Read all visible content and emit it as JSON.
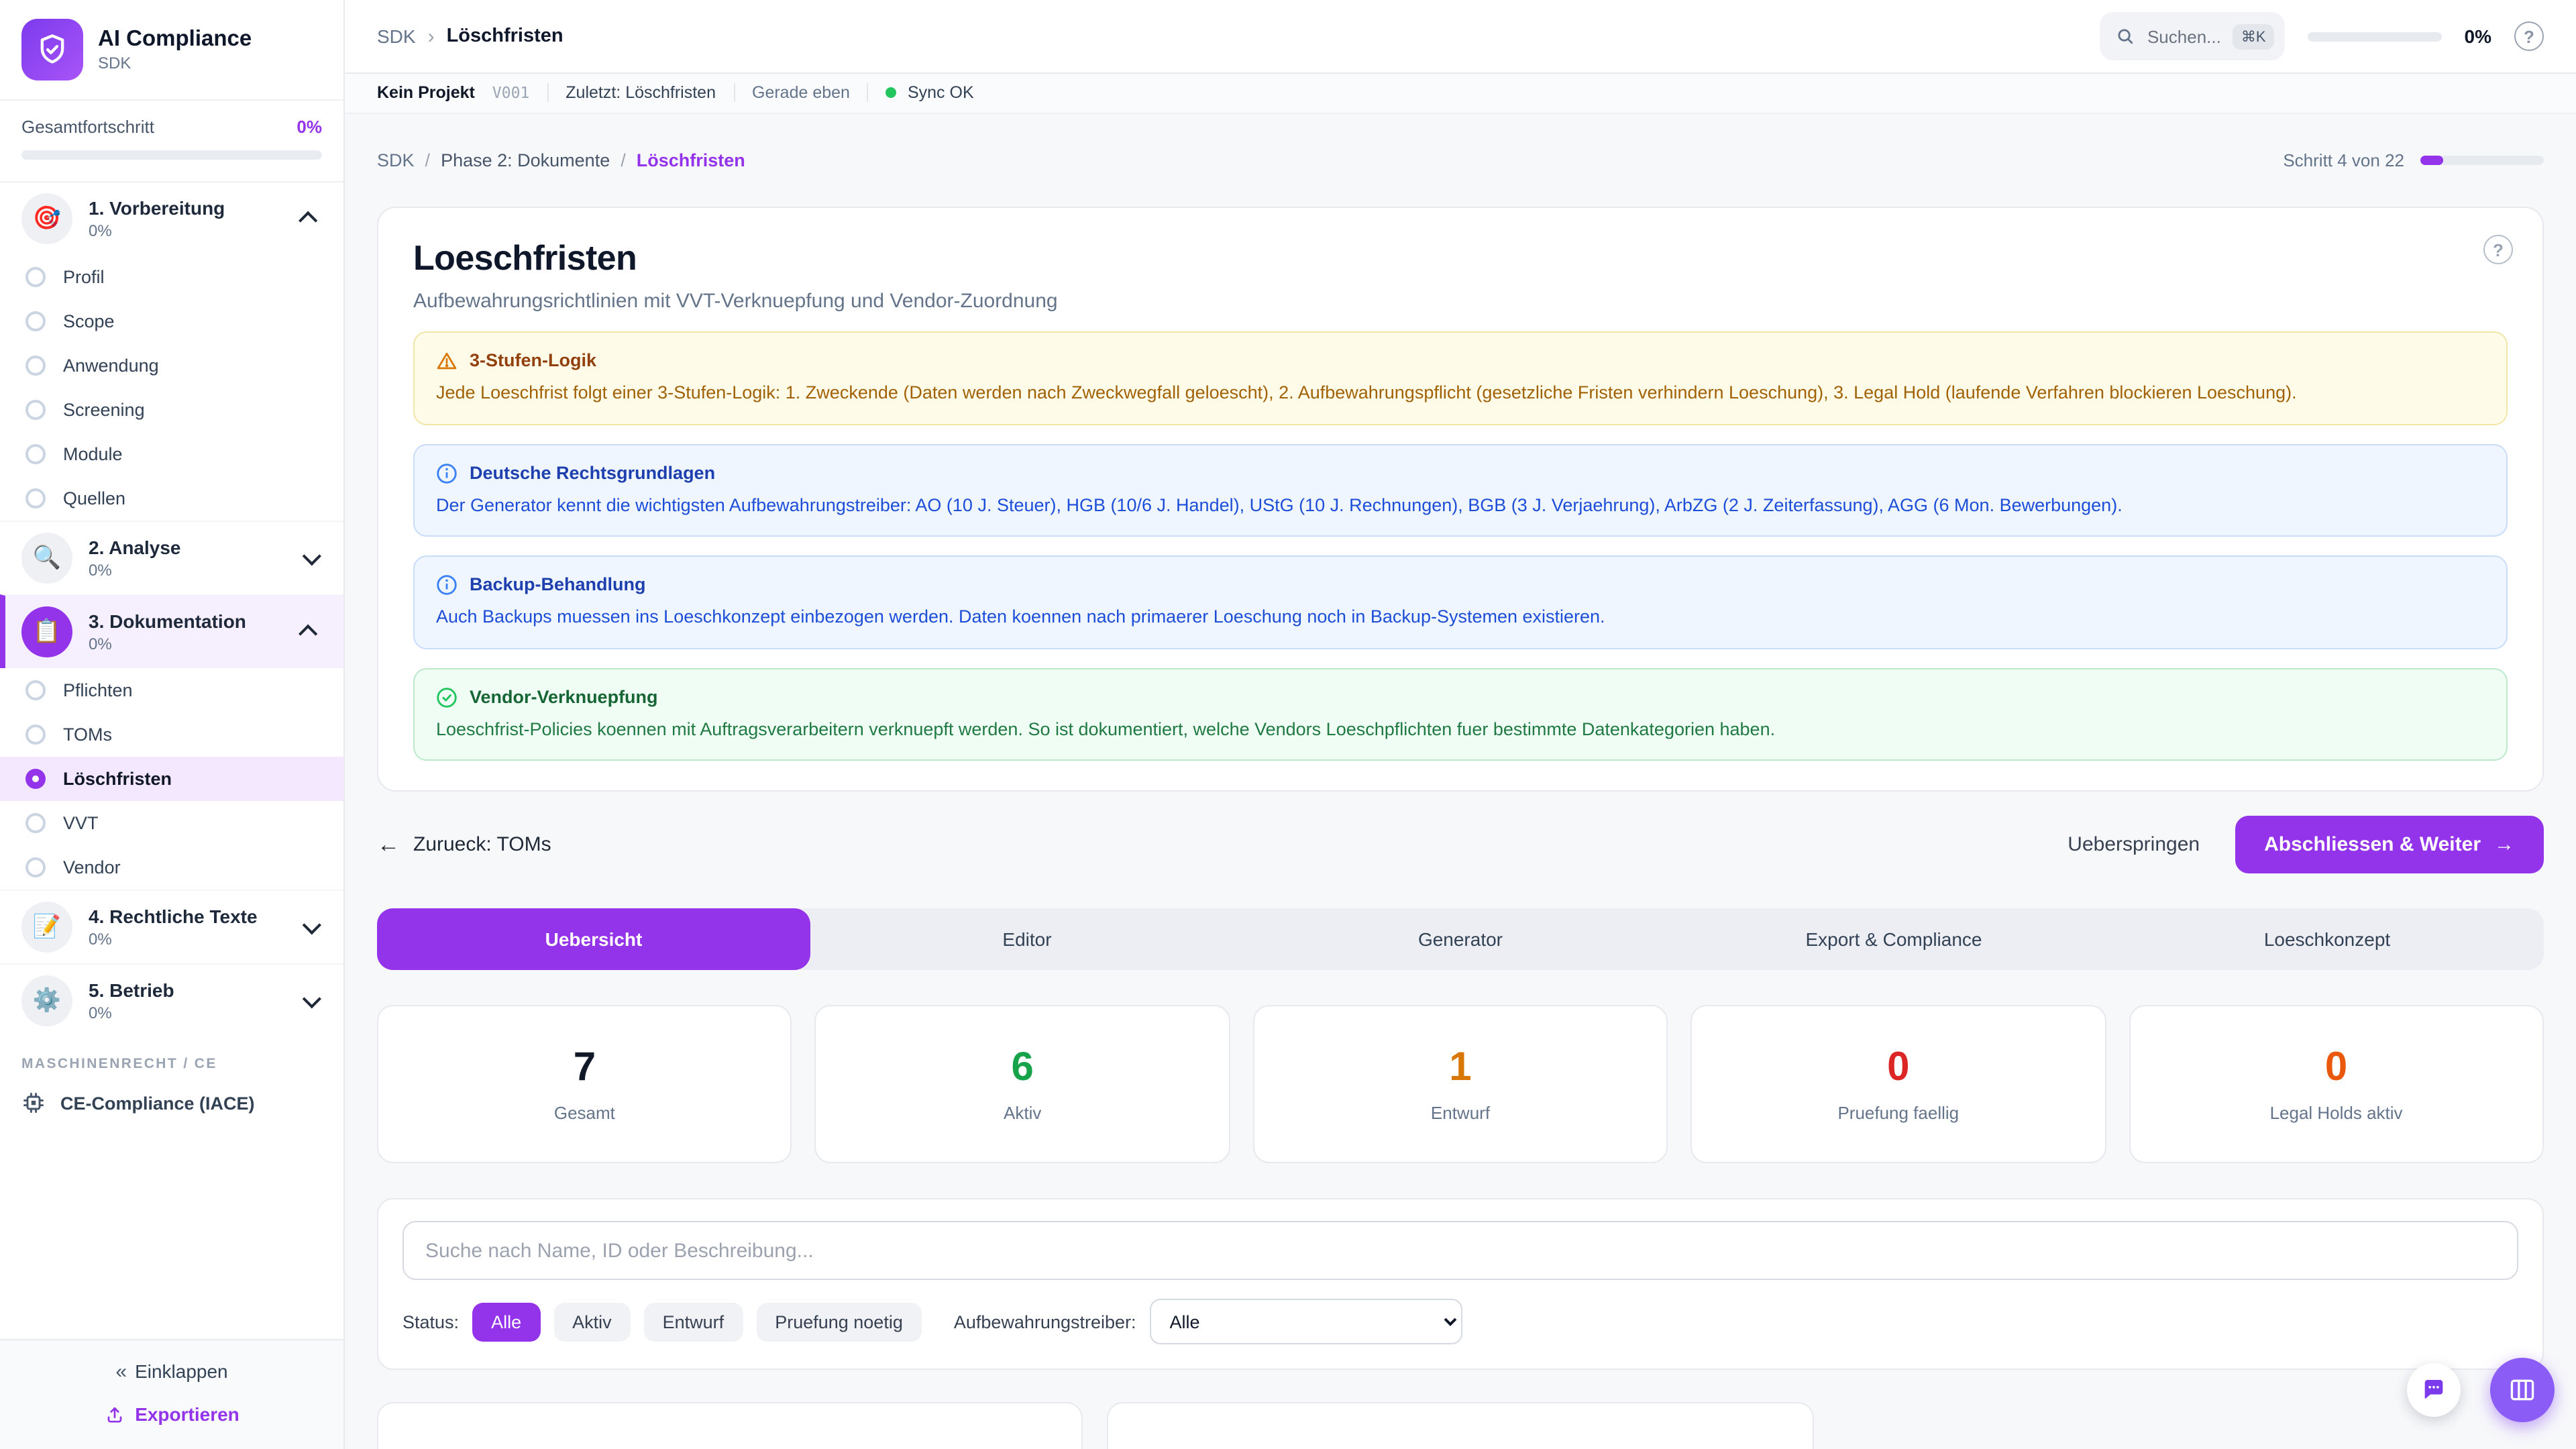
{
  "accent_color": "#9333ea",
  "sidebar": {
    "app_title": "AI Compliance",
    "app_subtitle": "SDK",
    "overall_label": "Gesamtfortschritt",
    "overall_value": "0%",
    "overall_fill": "0%",
    "sections": [
      {
        "icon": "🎯",
        "label": "1. Vorbereitung",
        "progress": "0%",
        "items": [
          {
            "label": "Profil"
          },
          {
            "label": "Scope"
          },
          {
            "label": "Anwendung"
          },
          {
            "label": "Screening"
          },
          {
            "label": "Module"
          },
          {
            "label": "Quellen"
          }
        ]
      },
      {
        "icon": "🔍",
        "label": "2. Analyse",
        "progress": "0%",
        "items": []
      },
      {
        "icon": "📋",
        "label": "3. Dokumentation",
        "progress": "0%",
        "items": [
          {
            "label": "Pflichten"
          },
          {
            "label": "TOMs"
          },
          {
            "label": "Löschfristen"
          },
          {
            "label": "VVT"
          },
          {
            "label": "Vendor"
          }
        ]
      },
      {
        "icon": "📝",
        "label": "4. Rechtliche Texte",
        "progress": "0%",
        "items": []
      },
      {
        "icon": "⚙️",
        "label": "5. Betrieb",
        "progress": "0%",
        "items": []
      }
    ],
    "group_label": "MASCHINENRECHT / CE",
    "ce_item": "CE-Compliance (IACE)",
    "collapse_label": "Einklappen",
    "export_label": "Exportieren"
  },
  "topbar": {
    "breadcrumb_root": "SDK",
    "breadcrumb_current": "Löschfristen",
    "search_placeholder": "Suchen...",
    "search_kbd": "⌘K",
    "progress_value": "0%",
    "progress_fill": "0%"
  },
  "statusbar": {
    "project": "Kein Projekt",
    "version": "V001",
    "last": "Zuletzt: Löschfristen",
    "time": "Gerade eben",
    "sync": "Sync OK",
    "sync_color": "#22c55e"
  },
  "pagebar": {
    "crumb_root": "SDK",
    "crumb_phase": "Phase 2: Dokumente",
    "crumb_current": "Löschfristen",
    "step_label": "Schritt 4 von 22",
    "step_fill": "18%"
  },
  "card": {
    "title": "Loeschfristen",
    "subtitle": "Aufbewahrungsrichtlinien mit VVT-Verknuepfung und Vendor-Zuordnung",
    "notes": [
      {
        "type": "warning",
        "title": "3-Stufen-Logik",
        "text": "Jede Loeschfrist folgt einer 3-Stufen-Logik: 1. Zweckende (Daten werden nach Zweckwegfall geloescht), 2. Aufbewahrungspflicht (gesetzliche Fristen verhindern Loeschung), 3. Legal Hold (laufende Verfahren blockieren Loeschung)."
      },
      {
        "type": "info",
        "title": "Deutsche Rechtsgrundlagen",
        "text": "Der Generator kennt die wichtigsten Aufbewahrungstreiber: AO (10 J. Steuer), HGB (10/6 J. Handel), UStG (10 J. Rechnungen), BGB (3 J. Verjaehrung), ArbZG (2 J. Zeiterfassung), AGG (6 Mon. Bewerbungen)."
      },
      {
        "type": "info",
        "title": "Backup-Behandlung",
        "text": "Auch Backups muessen ins Loeschkonzept einbezogen werden. Daten koennen nach primaerer Loeschung noch in Backup-Systemen existieren."
      },
      {
        "type": "success",
        "title": "Vendor-Verknuepfung",
        "text": "Loeschfrist-Policies koennen mit Auftragsverarbeitern verknuepft werden. So ist dokumentiert, welche Vendors Loeschpflichten fuer bestimmte Datenkategorien haben."
      }
    ]
  },
  "wizard_nav": {
    "back_label": "Zurueck: TOMs",
    "back_arrow": "←",
    "skip_label": "Ueberspringen",
    "next_label": "Abschliessen & Weiter",
    "next_arrow": "→"
  },
  "tabs": [
    {
      "label": "Uebersicht",
      "active": true
    },
    {
      "label": "Editor",
      "active": false
    },
    {
      "label": "Generator",
      "active": false
    },
    {
      "label": "Export & Compliance",
      "active": false
    },
    {
      "label": "Loeschkonzept",
      "active": false
    }
  ],
  "stats": [
    {
      "value": "7",
      "label": "Gesamt",
      "color": "#111827"
    },
    {
      "value": "6",
      "label": "Aktiv",
      "color": "#16a34a"
    },
    {
      "value": "1",
      "label": "Entwurf",
      "color": "#d97706"
    },
    {
      "value": "0",
      "label": "Pruefung faellig",
      "color": "#dc2626"
    },
    {
      "value": "0",
      "label": "Legal Holds aktiv",
      "color": "#ea580c"
    }
  ],
  "filters": {
    "search_placeholder": "Suche nach Name, ID oder Beschreibung...",
    "status_label": "Status:",
    "status_options": [
      {
        "label": "Alle",
        "active": true
      },
      {
        "label": "Aktiv",
        "active": false
      },
      {
        "label": "Entwurf",
        "active": false
      },
      {
        "label": "Pruefung noetig",
        "active": false
      }
    ],
    "driver_label": "Aufbewahrungstreiber:",
    "driver_value": "Alle"
  }
}
